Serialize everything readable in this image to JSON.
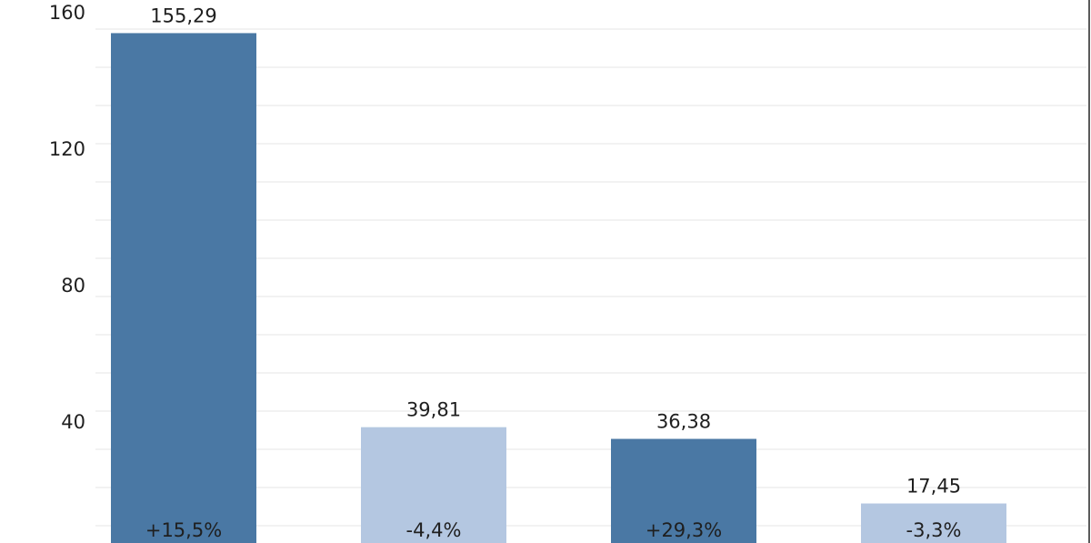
{
  "chart_data": {
    "type": "bar",
    "ylim": [
      0,
      165
    ],
    "y_ticks": [
      40,
      80,
      120,
      160
    ],
    "y_tick_labels": [
      "40",
      "80",
      "120",
      "160"
    ],
    "grid": true,
    "values": [
      155.29,
      39.81,
      36.38,
      17.45
    ],
    "value_labels": [
      "155,29",
      "39,81",
      "36,38",
      "17,45"
    ],
    "change_labels": [
      "+15,5%",
      "-4,4%",
      "+29,3%",
      "-3,3%"
    ],
    "bar_colors": [
      "#4a78a4",
      "#b4c7e1",
      "#4a78a4",
      "#b4c7e1"
    ]
  },
  "colors": {
    "text": "#1f1f1f",
    "grid": "#e4e4e4",
    "frame": "#5a5a5a"
  }
}
